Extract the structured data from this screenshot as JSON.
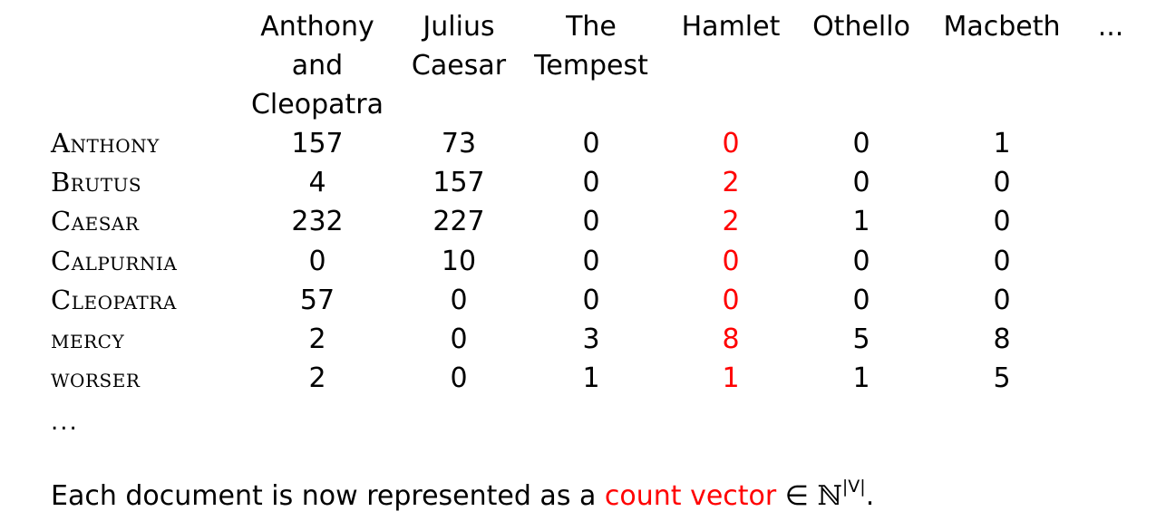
{
  "table": {
    "columns": [
      {
        "lines": [
          "Anthony",
          "and",
          "Cleopatra"
        ]
      },
      {
        "lines": [
          "Julius",
          "Caesar"
        ]
      },
      {
        "lines": [
          "The",
          "Tempest"
        ]
      },
      {
        "lines": [
          "Hamlet"
        ]
      },
      {
        "lines": [
          "Othello"
        ]
      },
      {
        "lines": [
          "Macbeth"
        ]
      },
      {
        "lines": [
          "..."
        ]
      }
    ],
    "highlighted_column": 3,
    "rows": [
      {
        "term": "Anthony",
        "values": [
          "157",
          "73",
          "0",
          "0",
          "0",
          "1"
        ]
      },
      {
        "term": "Brutus",
        "values": [
          "4",
          "157",
          "0",
          "2",
          "0",
          "0"
        ]
      },
      {
        "term": "Caesar",
        "values": [
          "232",
          "227",
          "0",
          "2",
          "1",
          "0"
        ]
      },
      {
        "term": "Calpurnia",
        "values": [
          "0",
          "10",
          "0",
          "0",
          "0",
          "0"
        ]
      },
      {
        "term": "Cleopatra",
        "values": [
          "57",
          "0",
          "0",
          "0",
          "0",
          "0"
        ]
      },
      {
        "term": "mercy",
        "values": [
          "2",
          "0",
          "3",
          "8",
          "5",
          "8"
        ]
      },
      {
        "term": "worser",
        "values": [
          "2",
          "0",
          "1",
          "1",
          "1",
          "5"
        ]
      }
    ],
    "row_ellipsis": "..."
  },
  "caption": {
    "prefix": "Each document is now represented as a ",
    "highlight": "count vector",
    "element_of": "∈",
    "set": "ℕ",
    "superscript": "|V|",
    "suffix": "."
  },
  "colors": {
    "text": "#000000",
    "highlight": "#ff0000",
    "background": "#ffffff"
  }
}
